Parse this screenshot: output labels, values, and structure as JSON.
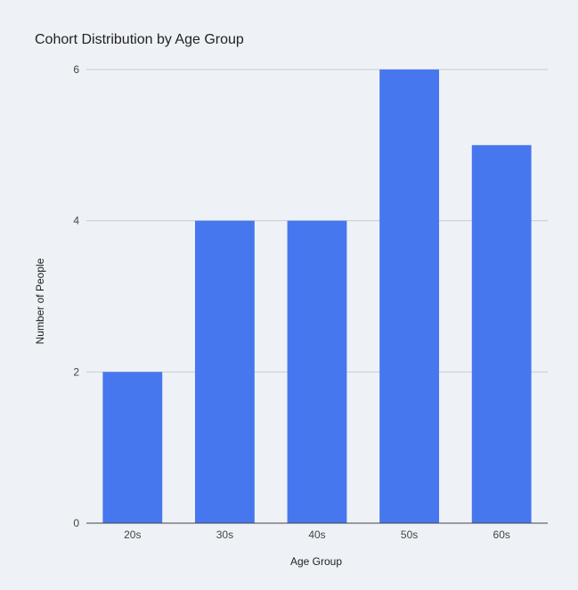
{
  "chart_data": {
    "type": "bar",
    "title": "Cohort Distribution by Age Group",
    "xlabel": "Age Group",
    "ylabel": "Number of People",
    "categories": [
      "20s",
      "30s",
      "40s",
      "50s",
      "60s"
    ],
    "values": [
      2,
      4,
      4,
      6,
      5
    ],
    "ylim": [
      0,
      6
    ],
    "yticks": [
      0,
      2,
      4,
      6
    ],
    "grid": true,
    "legend": "none",
    "colors": {
      "bar": "#4677ee",
      "grid": "#c8ccd2",
      "axis": "#444444",
      "background": "#eef2f6"
    }
  }
}
